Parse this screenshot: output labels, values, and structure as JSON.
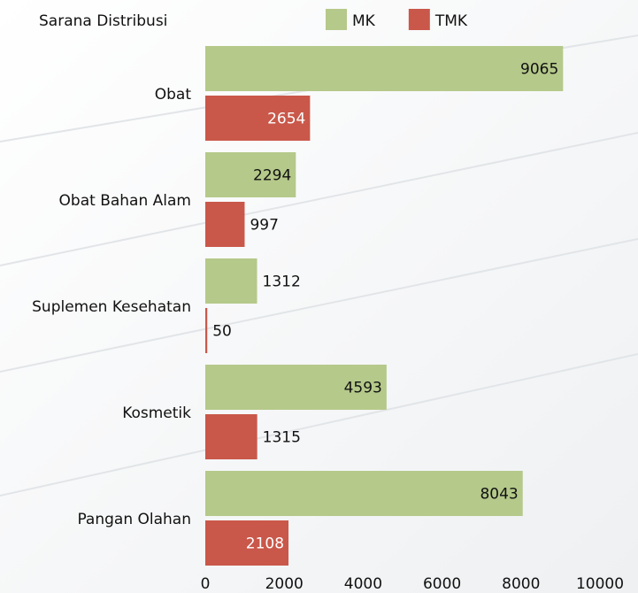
{
  "chart_data": {
    "type": "barh",
    "title": "Sarana Distribusi",
    "categories": [
      "Obat",
      "Obat Bahan Alam",
      "Suplemen Kesehatan",
      "Kosmetik",
      "Pangan Olahan"
    ],
    "series": [
      {
        "name": "MK",
        "color": "#b5c98a",
        "label_color": "#111111",
        "values": [
          9065,
          2294,
          1312,
          4593,
          8043
        ]
      },
      {
        "name": "TMK",
        "color": "#c9584a",
        "label_color": "#ffffff",
        "values": [
          2654,
          997,
          50,
          1315,
          2108
        ]
      }
    ],
    "xlim": [
      0,
      10000
    ],
    "xticks": [
      0,
      2000,
      4000,
      6000,
      8000,
      10000
    ],
    "legend": "top"
  }
}
